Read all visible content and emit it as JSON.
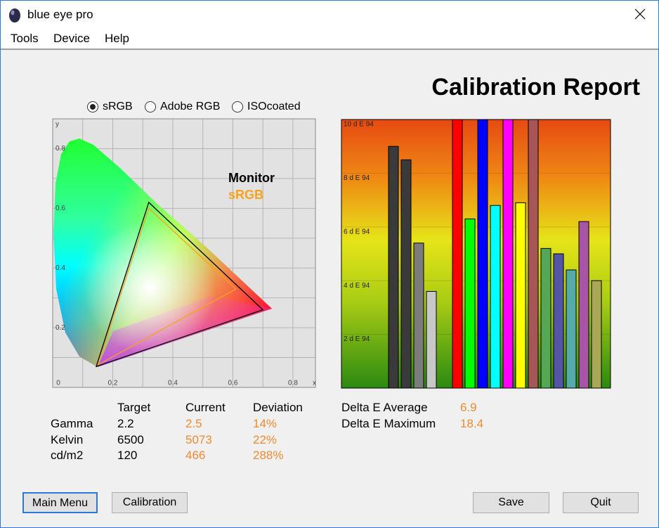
{
  "window": {
    "title": "blue eye pro"
  },
  "menu": [
    "Tools",
    "Device",
    "Help"
  ],
  "report_title": "Calibration Report",
  "gamut_options": {
    "items": [
      "sRGB",
      "Adobe RGB",
      "ISOcoated"
    ],
    "selected": 0
  },
  "chart_data": [
    {
      "type": "gamut",
      "x_label": "x",
      "y_label": "y",
      "xlim": [
        0,
        0.875
      ],
      "ylim": [
        0,
        0.9
      ],
      "xticks": [
        0,
        0.2,
        0.4,
        0.6,
        0.8
      ],
      "yticks": [
        0.2,
        0.4,
        0.6,
        0.8
      ],
      "minor_xticks": [
        0.1,
        0.3,
        0.5,
        0.7
      ],
      "minor_yticks": [
        0.1,
        0.3,
        0.5,
        0.7
      ],
      "grid": true,
      "series": [
        {
          "name": "Monitor",
          "color": "#000000",
          "x": [
            0.7,
            0.32,
            0.145
          ],
          "y": [
            0.26,
            0.62,
            0.07
          ]
        },
        {
          "name": "sRGB",
          "color": "#f5a21e",
          "x": [
            0.61,
            0.32,
            0.15
          ],
          "y": [
            0.33,
            0.6,
            0.075
          ]
        }
      ]
    },
    {
      "type": "bar",
      "ylim": [
        0,
        10
      ],
      "yticks": [
        {
          "value": 2,
          "label": "2 d E 94"
        },
        {
          "value": 4,
          "label": "4 d E 94"
        },
        {
          "value": 6,
          "label": "6 d E 94"
        },
        {
          "value": 8,
          "label": "8 d E 94"
        },
        {
          "value": 10,
          "label": "10 d E 94"
        }
      ],
      "grid": true,
      "values": [
        9.0,
        8.5,
        5.4,
        3.6,
        10,
        6.3,
        10,
        6.8,
        10,
        6.9,
        10,
        5.2,
        5.0,
        4.4,
        6.2,
        4.0
      ],
      "colors": [
        "#3a3a3a",
        "#3a3a3a",
        "#7c7c7c",
        "#c8c8c8",
        "#ff0000",
        "#00ff00",
        "#0000ff",
        "#00ffff",
        "#ff00ff",
        "#ffff00",
        "#a65656",
        "#55a655",
        "#5555a8",
        "#55aaaa",
        "#a855a8",
        "#a8a855"
      ]
    }
  ],
  "table": {
    "header": [
      "Target",
      "Current",
      "Deviation"
    ],
    "rows": [
      [
        "Gamma",
        "2.2",
        "2.5",
        "14%"
      ],
      [
        "Kelvin",
        "6500",
        "5073",
        "22%"
      ],
      [
        "cd/m2",
        "120",
        "466",
        "288%"
      ]
    ]
  },
  "delta_e": [
    {
      "label": "Delta E Average",
      "value": "6.9"
    },
    {
      "label": "Delta E Maximum",
      "value": "18.4"
    }
  ],
  "buttons": [
    "Main Menu",
    "Calibration",
    "Save",
    "Quit"
  ]
}
